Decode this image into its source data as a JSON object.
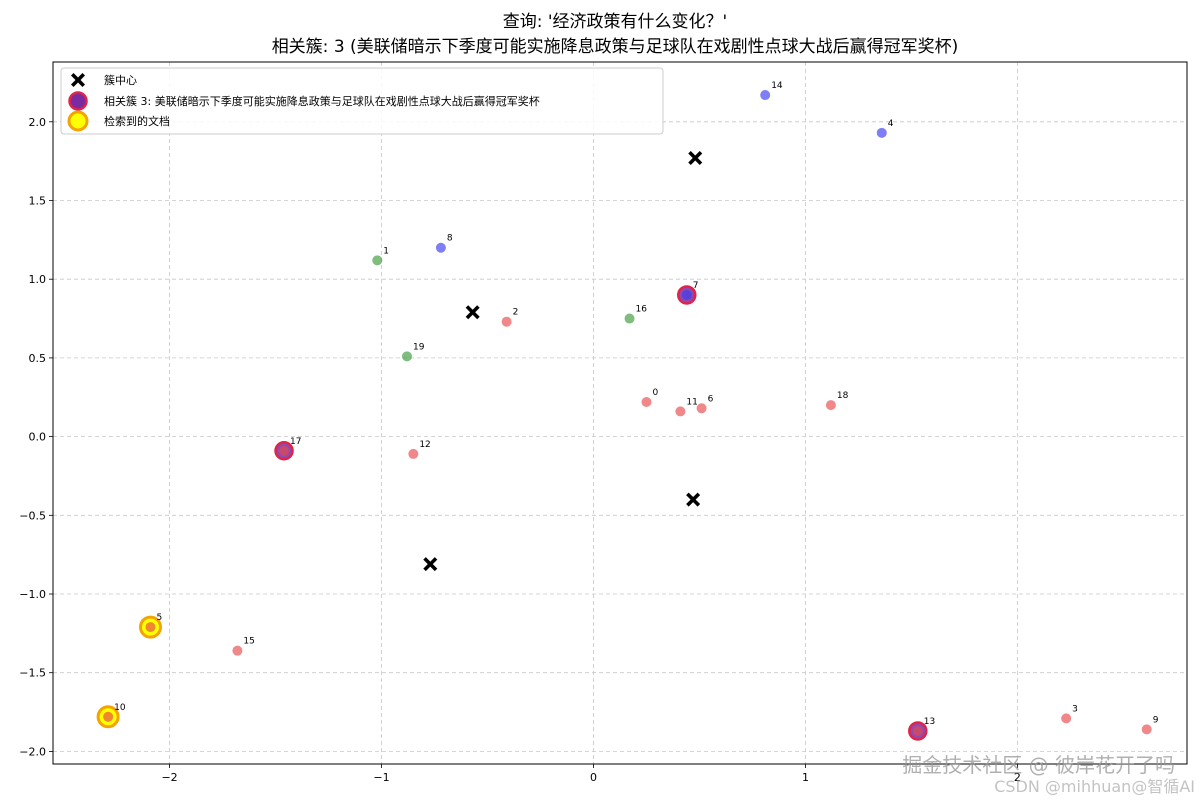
{
  "chart_data": {
    "type": "scatter",
    "title": "查询: '经济政策有什么变化？'",
    "subtitle": "相关簇: 3 (美联储暗示下季度可能实施降息政策与足球队在戏剧性点球大战后赢得冠军奖杯)",
    "xlim": [
      -2.55,
      2.8
    ],
    "ylim": [
      -2.08,
      2.38
    ],
    "x_ticks": [
      -2,
      -1,
      0,
      1,
      2
    ],
    "y_ticks": [
      -2.0,
      -1.5,
      -1.0,
      -0.5,
      0.0,
      0.5,
      1.0,
      1.5,
      2.0
    ],
    "x_tick_labels": [
      "−2",
      "−1",
      "0",
      "1",
      "2"
    ],
    "y_tick_labels": [
      "−2.0",
      "−1.5",
      "−1.0",
      "−0.5",
      "0.0",
      "0.5",
      "1.0",
      "1.5",
      "2.0"
    ],
    "grid": true,
    "legend_position": "top-left",
    "legend": [
      {
        "label": "簇中心",
        "marker": "x"
      },
      {
        "label": "相关簇 3: 美联储暗示下季度可能实施降息政策与足球队在戏剧性点球大战后赢得冠军奖杯",
        "marker": "related"
      },
      {
        "label": "检索到的文档",
        "marker": "retrieved"
      }
    ],
    "colors": {
      "red": "#e8474a",
      "green": "#3a9a3a",
      "blue": "#3a3af0",
      "center": "#000000",
      "related_edge": "#e0234a",
      "related_face": "#7b2aa0",
      "retrieved_edge": "#f5a300",
      "retrieved_face": "#ffff00"
    },
    "centers": [
      {
        "x": 0.48,
        "y": 1.77
      },
      {
        "x": -0.57,
        "y": 0.79
      },
      {
        "x": 0.47,
        "y": -0.4
      },
      {
        "x": -0.77,
        "y": -0.81
      }
    ],
    "points": [
      {
        "id": "0",
        "x": 0.25,
        "y": 0.22,
        "color": "red"
      },
      {
        "id": "1",
        "x": -1.02,
        "y": 1.12,
        "color": "green"
      },
      {
        "id": "2",
        "x": -0.41,
        "y": 0.73,
        "color": "red"
      },
      {
        "id": "3",
        "x": 2.23,
        "y": -1.79,
        "color": "red"
      },
      {
        "id": "4",
        "x": 1.36,
        "y": 1.93,
        "color": "blue"
      },
      {
        "id": "5",
        "x": -2.09,
        "y": -1.21,
        "color": "red",
        "retrieved": true
      },
      {
        "id": "6",
        "x": 0.51,
        "y": 0.18,
        "color": "red"
      },
      {
        "id": "7",
        "x": 0.44,
        "y": 0.9,
        "color": "blue",
        "related": true
      },
      {
        "id": "8",
        "x": -0.72,
        "y": 1.2,
        "color": "blue"
      },
      {
        "id": "9",
        "x": 2.61,
        "y": -1.86,
        "color": "red"
      },
      {
        "id": "10",
        "x": -2.29,
        "y": -1.78,
        "color": "red",
        "retrieved": true
      },
      {
        "id": "11",
        "x": 0.41,
        "y": 0.16,
        "color": "red"
      },
      {
        "id": "12",
        "x": -0.85,
        "y": -0.11,
        "color": "red"
      },
      {
        "id": "13",
        "x": 1.53,
        "y": -1.87,
        "color": "red",
        "related": true
      },
      {
        "id": "14",
        "x": 0.81,
        "y": 2.17,
        "color": "blue"
      },
      {
        "id": "15",
        "x": -1.68,
        "y": -1.36,
        "color": "red"
      },
      {
        "id": "16",
        "x": 0.17,
        "y": 0.75,
        "color": "green"
      },
      {
        "id": "17",
        "x": -1.46,
        "y": -0.09,
        "color": "red",
        "related": true
      },
      {
        "id": "18",
        "x": 1.12,
        "y": 0.2,
        "color": "red"
      },
      {
        "id": "19",
        "x": -0.88,
        "y": 0.51,
        "color": "green"
      }
    ]
  },
  "watermark": {
    "main": "掘金技术社区 @ 彼岸花开了吗",
    "sub": "CSDN @mihhuan@智循AI"
  }
}
